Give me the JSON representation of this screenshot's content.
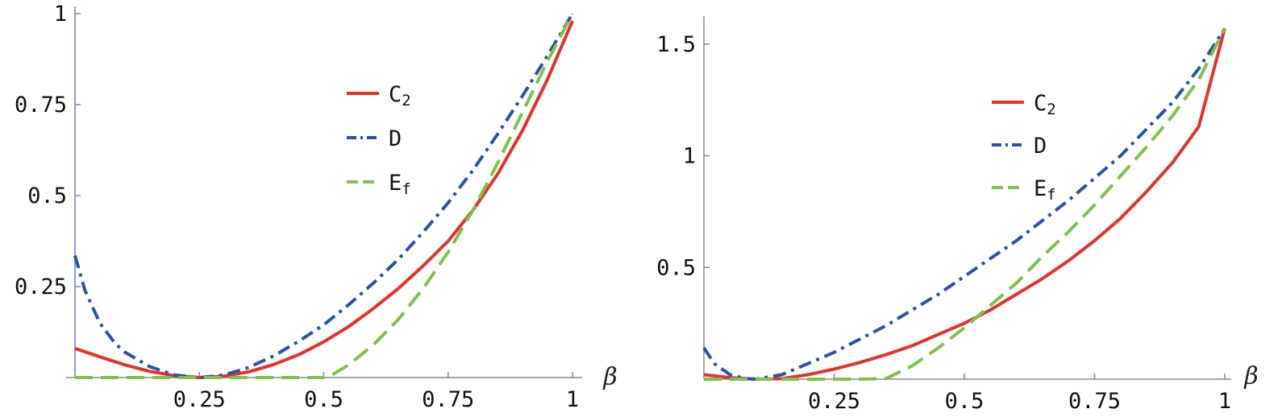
{
  "chart_data": [
    {
      "type": "line",
      "xlabel": "β",
      "ylabel": "",
      "xlim": [
        0,
        1
      ],
      "ylim": [
        0,
        1
      ],
      "x_ticks": [
        "0.25",
        "0.5",
        "0.75",
        "1"
      ],
      "y_ticks": [
        "0.25",
        "0.5",
        "0.75",
        "1"
      ],
      "grid": false,
      "legend_placement": "upper-center-right",
      "series": [
        {
          "name": "C",
          "subscript": "2",
          "color": "#e8302b",
          "dash": "solid",
          "x": [
            0,
            0.05,
            0.1,
            0.15,
            0.2,
            0.25,
            0.3,
            0.35,
            0.4,
            0.45,
            0.5,
            0.55,
            0.6,
            0.65,
            0.7,
            0.75,
            0.8,
            0.85,
            0.9,
            0.95,
            1.0
          ],
          "y": [
            0.08,
            0.057,
            0.035,
            0.017,
            0.005,
            0.0,
            0.004,
            0.016,
            0.036,
            0.063,
            0.098,
            0.14,
            0.19,
            0.245,
            0.307,
            0.375,
            0.46,
            0.56,
            0.68,
            0.82,
            0.98
          ]
        },
        {
          "name": "D",
          "color": "#2a53a8",
          "dash": "dashdot",
          "x": [
            0,
            0.02,
            0.05,
            0.08,
            0.1,
            0.15,
            0.2,
            0.25,
            0.3,
            0.35,
            0.4,
            0.45,
            0.5,
            0.55,
            0.6,
            0.65,
            0.7,
            0.75,
            0.8,
            0.85,
            0.9,
            0.95,
            1.0
          ],
          "y": [
            0.335,
            0.24,
            0.15,
            0.095,
            0.07,
            0.03,
            0.007,
            0.0,
            0.007,
            0.028,
            0.06,
            0.1,
            0.145,
            0.2,
            0.26,
            0.325,
            0.4,
            0.48,
            0.57,
            0.67,
            0.775,
            0.885,
            1.0
          ]
        },
        {
          "name": "E",
          "subscript": "f",
          "color": "#7dc24b",
          "dash": "dashed",
          "x": [
            0,
            0.1,
            0.2,
            0.3,
            0.4,
            0.5,
            0.52,
            0.55,
            0.6,
            0.65,
            0.7,
            0.75,
            0.8,
            0.85,
            0.9,
            0.95,
            1.0
          ],
          "y": [
            0,
            0,
            0,
            0,
            0,
            0,
            0.01,
            0.035,
            0.09,
            0.16,
            0.245,
            0.345,
            0.46,
            0.59,
            0.73,
            0.87,
            1.0
          ]
        }
      ]
    },
    {
      "type": "line",
      "xlabel": "β",
      "ylabel": "",
      "xlim": [
        0,
        1
      ],
      "ylim": [
        0,
        1.6
      ],
      "x_ticks": [
        "0.25",
        "0.5",
        "0.75",
        "1"
      ],
      "y_ticks": [
        "0.5",
        "1",
        "1.5"
      ],
      "grid": false,
      "legend_placement": "upper-center-right",
      "series": [
        {
          "name": "C",
          "subscript": "2",
          "color": "#e8302b",
          "dash": "solid",
          "x": [
            0,
            0.05,
            0.1,
            0.15,
            0.2,
            0.25,
            0.3,
            0.35,
            0.4,
            0.45,
            0.5,
            0.55,
            0.6,
            0.65,
            0.7,
            0.75,
            0.8,
            0.85,
            0.9,
            0.95,
            1.0
          ],
          "y": [
            0.02,
            0.007,
            0.0,
            0.002,
            0.02,
            0.045,
            0.075,
            0.11,
            0.15,
            0.2,
            0.25,
            0.31,
            0.38,
            0.45,
            0.53,
            0.62,
            0.72,
            0.84,
            0.97,
            1.13,
            1.57
          ]
        },
        {
          "name": "D",
          "color": "#2a53a8",
          "dash": "dashdot",
          "x": [
            0,
            0.02,
            0.05,
            0.08,
            0.1,
            0.15,
            0.2,
            0.25,
            0.3,
            0.35,
            0.4,
            0.45,
            0.5,
            0.55,
            0.6,
            0.65,
            0.7,
            0.75,
            0.8,
            0.85,
            0.9,
            0.95,
            1.0
          ],
          "y": [
            0.14,
            0.07,
            0.02,
            0.003,
            0.0,
            0.02,
            0.07,
            0.12,
            0.18,
            0.24,
            0.31,
            0.38,
            0.46,
            0.54,
            0.62,
            0.71,
            0.8,
            0.9,
            1.0,
            1.12,
            1.24,
            1.39,
            1.57
          ]
        },
        {
          "name": "E",
          "subscript": "f",
          "color": "#7dc24b",
          "dash": "dashed",
          "x": [
            0,
            0.1,
            0.2,
            0.3,
            0.35,
            0.4,
            0.45,
            0.5,
            0.55,
            0.6,
            0.65,
            0.7,
            0.75,
            0.8,
            0.85,
            0.9,
            0.95,
            1.0
          ],
          "y": [
            0,
            0,
            0,
            0,
            0.003,
            0.06,
            0.14,
            0.23,
            0.33,
            0.43,
            0.55,
            0.66,
            0.78,
            0.91,
            1.04,
            1.18,
            1.34,
            1.57
          ]
        }
      ]
    }
  ]
}
